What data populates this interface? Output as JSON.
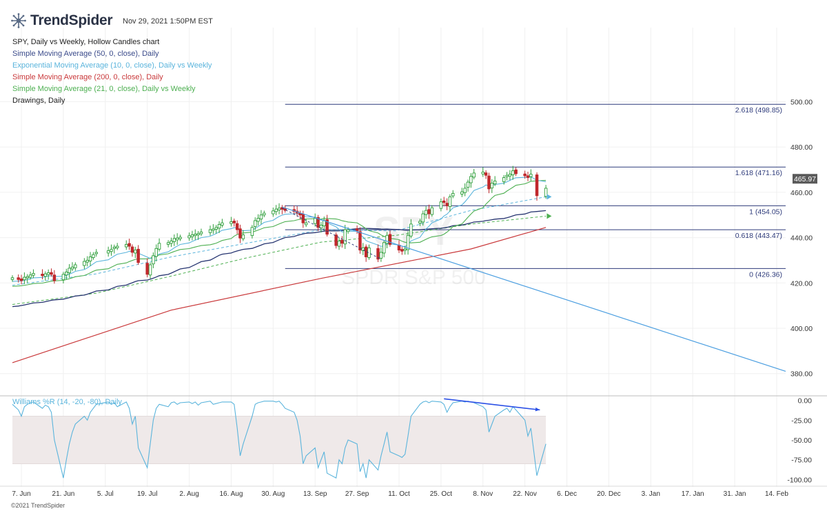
{
  "header": {
    "brand": "TrendSpider",
    "timestamp": "Nov 29, 2021 1:50PM EST"
  },
  "legend": [
    {
      "label": "SPY, Daily vs Weekly, Hollow Candles chart",
      "color": "#222222"
    },
    {
      "label": "Simple Moving Average (50, 0, close), Daily",
      "color": "#3a4a8a"
    },
    {
      "label": "Exponential Moving Average (10, 0, close), Daily vs Weekly",
      "color": "#5ab4dc"
    },
    {
      "label": "Simple Moving Average (200, 0, close), Daily",
      "color": "#c9383a"
    },
    {
      "label": "Simple Moving Average (21, 0, close), Daily vs Weekly",
      "color": "#4caf50"
    },
    {
      "label": "Drawings, Daily",
      "color": "#222222"
    }
  ],
  "watermark": {
    "ticker": "SPY",
    "name": "SPDR S&P 500"
  },
  "copyright": "©2021 TrendSpider",
  "chart_data": {
    "type": "candlestick",
    "price_axis": {
      "ylim": [
        372,
        512
      ],
      "ticks": [
        "380.00",
        "400.00",
        "420.00",
        "440.00",
        "460.00",
        "480.00",
        "500.00"
      ]
    },
    "last_price": "465.97",
    "x_ticks": [
      "7. Jun",
      "21. Jun",
      "5. Jul",
      "19. Jul",
      "2. Aug",
      "16. Aug",
      "30. Aug",
      "13. Sep",
      "27. Sep",
      "11. Oct",
      "25. Oct",
      "8. Nov",
      "22. Nov",
      "6. Dec",
      "20. Dec",
      "3. Jan",
      "17. Jan",
      "31. Jan",
      "14. Feb"
    ],
    "x_tick_days": [
      0,
      14,
      28,
      42,
      56,
      70,
      84,
      98,
      112,
      126,
      140,
      154,
      168,
      182,
      196,
      210,
      224,
      238,
      252
    ],
    "x_range_days": [
      -3,
      255
    ],
    "fib_levels": [
      {
        "label": "2.618 (498.85)",
        "value": 498.85
      },
      {
        "label": "1.618 (471.16)",
        "value": 471.16
      },
      {
        "label": "1 (454.05)",
        "value": 454.05
      },
      {
        "label": "0.618 (443.47)",
        "value": 443.47
      },
      {
        "label": "0 (426.36)",
        "value": 426.36
      }
    ],
    "fib_start_day": 88,
    "closes": [
      [
        -3,
        422.3
      ],
      [
        -1,
        421.5
      ],
      [
        0,
        421.0
      ],
      [
        1,
        422.5
      ],
      [
        2,
        422.8
      ],
      [
        3,
        423.5
      ],
      [
        4,
        424.2
      ],
      [
        7,
        423.2
      ],
      [
        8,
        424.0
      ],
      [
        9,
        424.5
      ],
      [
        10,
        423.8
      ],
      [
        11,
        421.0
      ],
      [
        14,
        423.8
      ],
      [
        15,
        424.8
      ],
      [
        16,
        426.5
      ],
      [
        17,
        427.0
      ],
      [
        18,
        428.0
      ],
      [
        21,
        429.5
      ],
      [
        22,
        430.0
      ],
      [
        23,
        431.5
      ],
      [
        24,
        432.5
      ],
      [
        25,
        433.5
      ],
      [
        29,
        434.2
      ],
      [
        30,
        434.8
      ],
      [
        31,
        435.8
      ],
      [
        32,
        436.2
      ],
      [
        35,
        437.0
      ],
      [
        36,
        436.2
      ],
      [
        37,
        433.5
      ],
      [
        38,
        434.5
      ],
      [
        39,
        429.0
      ],
      [
        42,
        423.8
      ],
      [
        43,
        428.0
      ],
      [
        44,
        432.0
      ],
      [
        45,
        435.2
      ],
      [
        46,
        437.5
      ],
      [
        49,
        437.8
      ],
      [
        50,
        438.5
      ],
      [
        51,
        439.6
      ],
      [
        52,
        439.8
      ],
      [
        53,
        440.2
      ],
      [
        56,
        440.8
      ],
      [
        57,
        441.2
      ],
      [
        58,
        441.5
      ],
      [
        59,
        441.8
      ],
      [
        60,
        442.5
      ],
      [
        63,
        443.5
      ],
      [
        64,
        443.8
      ],
      [
        65,
        444.5
      ],
      [
        66,
        445.8
      ],
      [
        67,
        446.5
      ],
      [
        70,
        447.0
      ],
      [
        71,
        446.5
      ],
      [
        72,
        443.5
      ],
      [
        73,
        439.8
      ],
      [
        74,
        441.2
      ],
      [
        77,
        444.5
      ],
      [
        78,
        447.5
      ],
      [
        79,
        448.5
      ],
      [
        80,
        450.0
      ],
      [
        81,
        450.8
      ],
      [
        84,
        451.8
      ],
      [
        85,
        452.6
      ],
      [
        86,
        453.0
      ],
      [
        87,
        452.5
      ],
      [
        88,
        452.0
      ],
      [
        91,
        451.5
      ],
      [
        92,
        450.9
      ],
      [
        93,
        450.0
      ],
      [
        94,
        446.5
      ],
      [
        95,
        446.5
      ],
      [
        98,
        448.5
      ],
      [
        99,
        444.5
      ],
      [
        100,
        445.5
      ],
      [
        101,
        447.5
      ],
      [
        102,
        441.5
      ],
      [
        105,
        436.5
      ],
      [
        106,
        438.5
      ],
      [
        107,
        437.5
      ],
      [
        108,
        443.5
      ],
      [
        109,
        443.5
      ],
      [
        112,
        443.0
      ],
      [
        113,
        434.5
      ],
      [
        114,
        435.5
      ],
      [
        115,
        431.5
      ],
      [
        116,
        435.5
      ],
      [
        119,
        430.5
      ],
      [
        120,
        433.5
      ],
      [
        121,
        437.8
      ],
      [
        122,
        441.0
      ],
      [
        123,
        437.0
      ],
      [
        126,
        434.5
      ],
      [
        127,
        434.0
      ],
      [
        128,
        435.0
      ],
      [
        129,
        441.0
      ],
      [
        130,
        446.0
      ],
      [
        133,
        447.2
      ],
      [
        134,
        450.5
      ],
      [
        135,
        452.0
      ],
      [
        136,
        450.5
      ],
      [
        137,
        453.2
      ],
      [
        140,
        455.8
      ],
      [
        141,
        455.5
      ],
      [
        142,
        454.0
      ],
      [
        143,
        458.0
      ],
      [
        144,
        459.5
      ],
      [
        147,
        460.2
      ],
      [
        148,
        461.8
      ],
      [
        149,
        464.5
      ],
      [
        150,
        467.0
      ],
      [
        151,
        468.5
      ],
      [
        154,
        468.9
      ],
      [
        155,
        467.5
      ],
      [
        156,
        461.5
      ],
      [
        157,
        464.0
      ],
      [
        158,
        465.0
      ],
      [
        161,
        466.5
      ],
      [
        162,
        467.5
      ],
      [
        163,
        468.0
      ],
      [
        164,
        469.5
      ],
      [
        165,
        468.2
      ],
      [
        168,
        467.3
      ],
      [
        169,
        466.5
      ],
      [
        170,
        468.0
      ],
      [
        172,
        458.5
      ],
      [
        175,
        461.8
      ]
    ],
    "sma200_line": [
      [
        -3,
        384.8
      ],
      [
        50,
        408.0
      ],
      [
        100,
        422.0
      ],
      [
        150,
        435.0
      ],
      [
        175,
        444.5
      ]
    ],
    "sma21_weekly": [
      [
        -3,
        410.5
      ],
      [
        25,
        415.5
      ],
      [
        50,
        423.0
      ],
      [
        75,
        431.0
      ],
      [
        100,
        438.0
      ],
      [
        125,
        441.0
      ],
      [
        150,
        446.0
      ],
      [
        175,
        449.5
      ]
    ],
    "ema10_weekly": [
      [
        -3,
        419.0
      ],
      [
        25,
        424.0
      ],
      [
        50,
        431.5
      ],
      [
        75,
        437.5
      ],
      [
        100,
        443.5
      ],
      [
        125,
        443.0
      ],
      [
        150,
        452.0
      ],
      [
        175,
        458.0
      ]
    ],
    "trendline": {
      "start": [
        87,
        453.5
      ],
      "end": [
        255,
        381.0
      ]
    },
    "pullback_line": {
      "start": [
        87,
        453.0
      ],
      "end": [
        120,
        430.5
      ]
    },
    "markers": [
      {
        "day": 176,
        "value": 458.0,
        "color": "#5ab4dc"
      },
      {
        "day": 176,
        "value": 449.5,
        "color": "#4caf50"
      }
    ],
    "williams_r": {
      "label": "Williams %R (14, -20, -80), Daily",
      "ylim": [
        -104,
        4
      ],
      "ticks": [
        "0.00",
        "-25.00",
        "-50.00",
        "-75.00",
        "-100.00"
      ],
      "band": [
        -20,
        -80
      ],
      "values": [
        [
          -3,
          -5
        ],
        [
          -1,
          -12
        ],
        [
          0,
          -20
        ],
        [
          1,
          -8
        ],
        [
          2,
          -5
        ],
        [
          3,
          -3
        ],
        [
          4,
          -2
        ],
        [
          7,
          -10
        ],
        [
          8,
          -6
        ],
        [
          9,
          -8
        ],
        [
          10,
          -15
        ],
        [
          11,
          -50
        ],
        [
          14,
          -98
        ],
        [
          15,
          -75
        ],
        [
          16,
          -55
        ],
        [
          17,
          -40
        ],
        [
          18,
          -30
        ],
        [
          21,
          -20
        ],
        [
          22,
          -25
        ],
        [
          23,
          -15
        ],
        [
          24,
          -10
        ],
        [
          25,
          -5
        ],
        [
          29,
          -2
        ],
        [
          30,
          -5
        ],
        [
          31,
          -3
        ],
        [
          32,
          -8
        ],
        [
          35,
          -2
        ],
        [
          36,
          -10
        ],
        [
          37,
          -30
        ],
        [
          38,
          -20
        ],
        [
          39,
          -60
        ],
        [
          42,
          -85
        ],
        [
          43,
          -55
        ],
        [
          44,
          -25
        ],
        [
          45,
          -10
        ],
        [
          46,
          -5
        ],
        [
          49,
          -8
        ],
        [
          50,
          -3
        ],
        [
          51,
          -2
        ],
        [
          52,
          -5
        ],
        [
          53,
          -3
        ],
        [
          56,
          -2
        ],
        [
          57,
          -4
        ],
        [
          58,
          -2
        ],
        [
          59,
          -6
        ],
        [
          60,
          -3
        ],
        [
          63,
          -1
        ],
        [
          64,
          -5
        ],
        [
          65,
          -4
        ],
        [
          66,
          -3
        ],
        [
          67,
          -2
        ],
        [
          70,
          -2
        ],
        [
          71,
          -5
        ],
        [
          72,
          -35
        ],
        [
          73,
          -70
        ],
        [
          74,
          -55
        ],
        [
          77,
          -20
        ],
        [
          78,
          -5
        ],
        [
          79,
          -3
        ],
        [
          80,
          -2
        ],
        [
          81,
          -1
        ],
        [
          84,
          -1
        ],
        [
          85,
          -2
        ],
        [
          86,
          -1
        ],
        [
          87,
          -5
        ],
        [
          88,
          -10
        ],
        [
          91,
          -15
        ],
        [
          92,
          -25
        ],
        [
          93,
          -45
        ],
        [
          94,
          -80
        ],
        [
          95,
          -70
        ],
        [
          98,
          -60
        ],
        [
          99,
          -85
        ],
        [
          100,
          -75
        ],
        [
          101,
          -65
        ],
        [
          102,
          -92
        ],
        [
          105,
          -98
        ],
        [
          106,
          -75
        ],
        [
          107,
          -80
        ],
        [
          108,
          -60
        ],
        [
          109,
          -50
        ],
        [
          112,
          -55
        ],
        [
          113,
          -90
        ],
        [
          114,
          -80
        ],
        [
          115,
          -98
        ],
        [
          116,
          -75
        ],
        [
          119,
          -88
        ],
        [
          120,
          -70
        ],
        [
          121,
          -55
        ],
        [
          122,
          -40
        ],
        [
          123,
          -65
        ],
        [
          126,
          -70
        ],
        [
          127,
          -72
        ],
        [
          128,
          -68
        ],
        [
          129,
          -45
        ],
        [
          130,
          -20
        ],
        [
          133,
          -5
        ],
        [
          134,
          -2
        ],
        [
          135,
          -1
        ],
        [
          136,
          -3
        ],
        [
          137,
          -1
        ],
        [
          140,
          -2
        ],
        [
          141,
          -5
        ],
        [
          142,
          -15
        ],
        [
          143,
          -8
        ],
        [
          144,
          -3
        ],
        [
          147,
          -1
        ],
        [
          148,
          -2
        ],
        [
          149,
          -1
        ],
        [
          150,
          -2
        ],
        [
          151,
          -3
        ],
        [
          154,
          -8
        ],
        [
          155,
          -12
        ],
        [
          156,
          -40
        ],
        [
          157,
          -30
        ],
        [
          158,
          -20
        ],
        [
          161,
          -12
        ],
        [
          162,
          -10
        ],
        [
          163,
          -15
        ],
        [
          164,
          -8
        ],
        [
          165,
          -12
        ],
        [
          168,
          -25
        ],
        [
          169,
          -45
        ],
        [
          170,
          -35
        ],
        [
          172,
          -95
        ],
        [
          175,
          -55
        ]
      ],
      "divergence": {
        "start": [
          141,
          2
        ],
        "end": [
          173,
          -12
        ]
      }
    }
  }
}
